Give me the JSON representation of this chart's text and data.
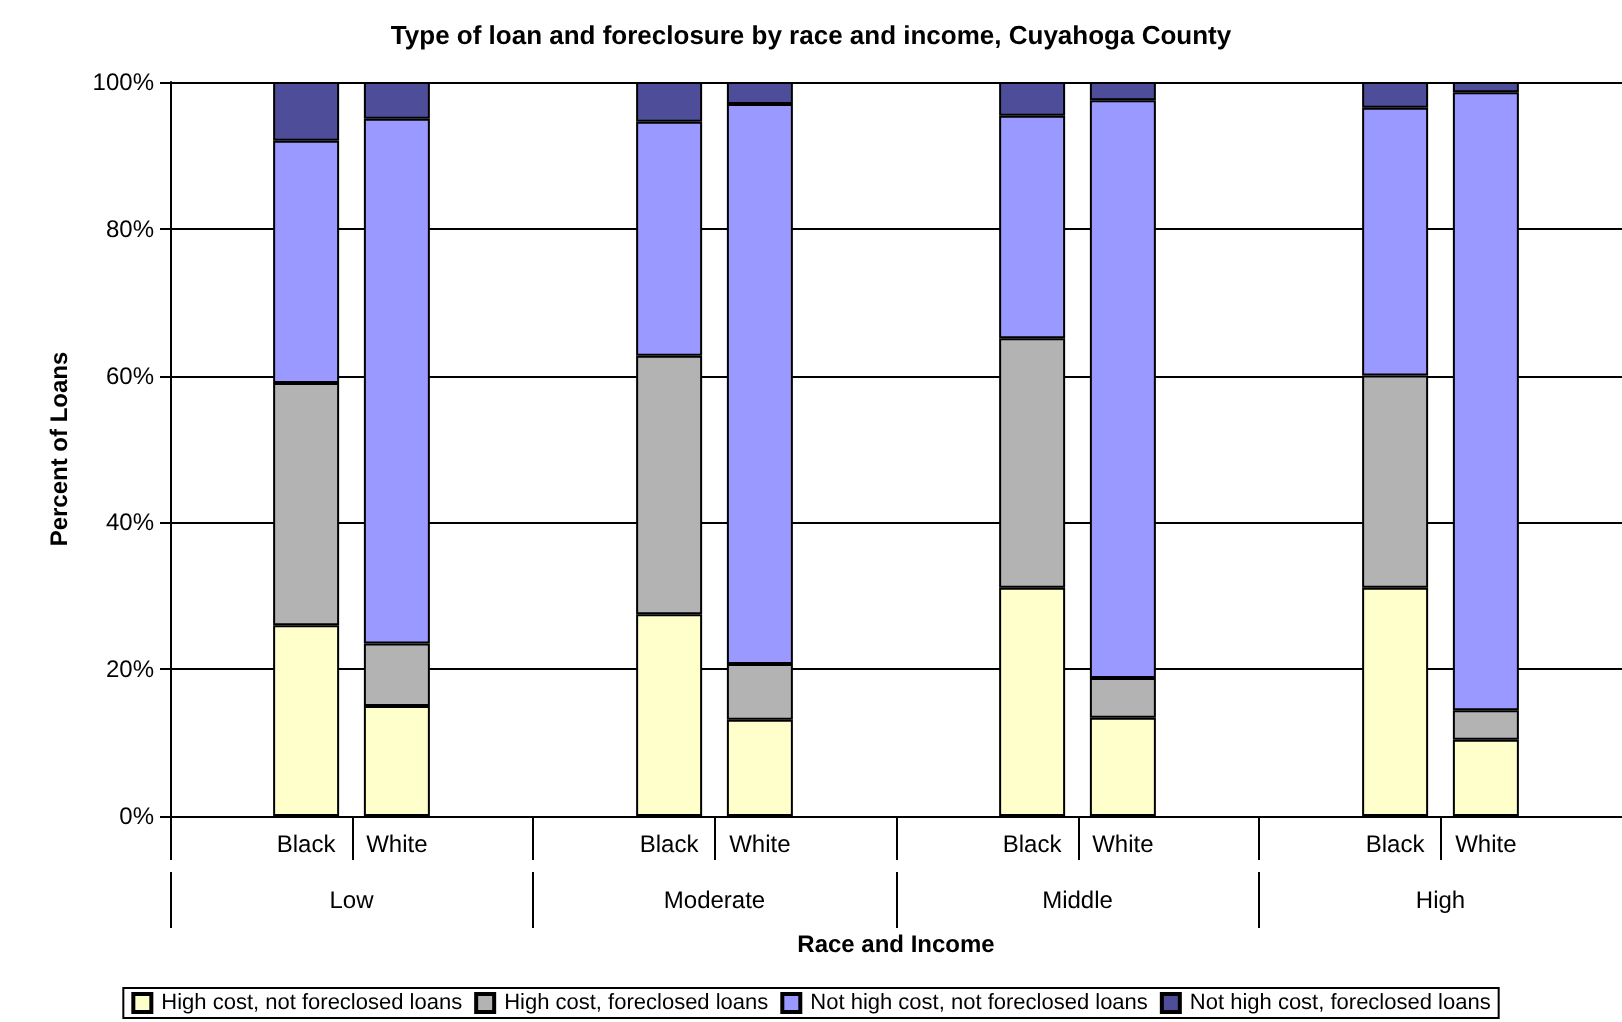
{
  "chart_data": {
    "type": "bar",
    "title": "Type of loan and foreclosure by race and income, Cuyahoga County",
    "xlabel": "Race and Income",
    "ylabel": "Percent of Loans",
    "categories": [
      null,
      "Black",
      "White",
      null,
      null,
      "Black",
      "White",
      null,
      null,
      "Black",
      "White",
      null,
      null,
      "Black",
      "White",
      null
    ],
    "annotations": [
      "Low",
      "Moderate",
      "Middle",
      "High"
    ],
    "stacked": true,
    "ylim": [
      0,
      100
    ],
    "yticks": [
      {
        "value": 0,
        "label": "0%"
      },
      {
        "value": 20,
        "label": "20%"
      },
      {
        "value": 40,
        "label": "40%"
      },
      {
        "value": 60,
        "label": "60%"
      },
      {
        "value": 80,
        "label": "80%"
      },
      {
        "value": 100,
        "label": "100%"
      }
    ],
    "grid": "y",
    "legend": "bottom",
    "series": [
      {
        "name": "High cost, not foreclosed loans",
        "color": "#ffffcc",
        "values": [
          null,
          26,
          15,
          null,
          null,
          27.5,
          13.1,
          null,
          null,
          31.1,
          13.4,
          null,
          null,
          31.1,
          10.4,
          null
        ]
      },
      {
        "name": "High cost, foreclosed loans",
        "color": "#b3b3b3",
        "values": [
          null,
          33,
          8.5,
          null,
          null,
          35.2,
          7.6,
          null,
          null,
          34,
          5.4,
          null,
          null,
          28.9,
          4,
          null
        ]
      },
      {
        "name": "Not high cost, not foreclosed loans",
        "color": "#9999ff",
        "values": [
          null,
          33,
          71.5,
          null,
          null,
          31.9,
          76.3,
          null,
          null,
          30.3,
          78.7,
          null,
          null,
          36.5,
          84.2,
          null
        ]
      },
      {
        "name": "Not high cost, foreclosed loans",
        "color": "#4d4d99",
        "values": [
          null,
          8,
          5,
          null,
          null,
          5.4,
          3,
          null,
          null,
          4.6,
          2.5,
          null,
          null,
          3.5,
          1.4,
          null
        ]
      }
    ]
  }
}
